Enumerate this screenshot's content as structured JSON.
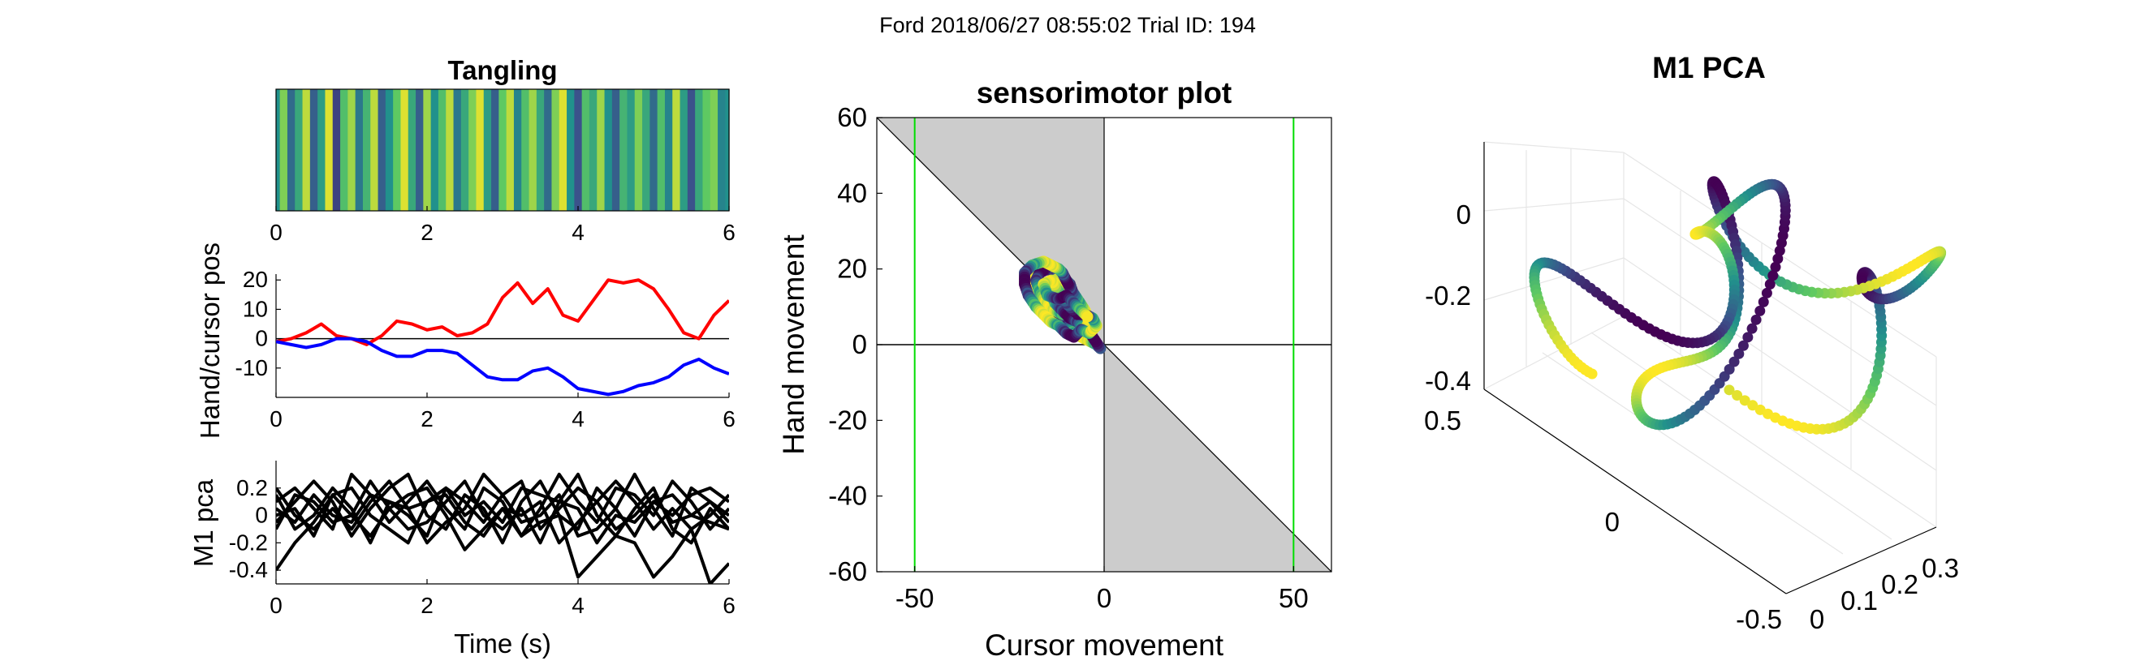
{
  "figure": {
    "suptitle": "Ford 2018/06/27 08:55:02 Trial ID: 194"
  },
  "colors": {
    "red": "#ff0000",
    "blue": "#0000ff",
    "green": "#00dd00",
    "black": "#000000",
    "shade": "#cccccc",
    "viridis": [
      "#440154",
      "#3b528b",
      "#21918c",
      "#5ec962",
      "#fde725"
    ]
  },
  "chart_data": [
    {
      "id": "tangling",
      "type": "heatmap",
      "title": "Tangling",
      "xlim": [
        0,
        6
      ],
      "xticks": [
        "0",
        "2",
        "4",
        "6"
      ],
      "colormap": "viridis",
      "x": [
        0,
        0.1,
        0.2,
        0.3,
        0.4,
        0.5,
        0.6,
        0.7,
        0.8,
        0.9,
        1.0,
        1.1,
        1.2,
        1.3,
        1.4,
        1.5,
        1.6,
        1.7,
        1.8,
        1.9,
        2.0,
        2.1,
        2.2,
        2.3,
        2.4,
        2.5,
        2.6,
        2.7,
        2.8,
        2.9,
        3.0,
        3.1,
        3.2,
        3.3,
        3.4,
        3.5,
        3.6,
        3.7,
        3.8,
        3.9,
        4.0,
        4.1,
        4.2,
        4.3,
        4.4,
        4.5,
        4.6,
        4.7,
        4.8,
        4.9,
        5.0,
        5.1,
        5.2,
        5.3,
        5.4,
        5.5,
        5.6,
        5.7,
        5.8,
        5.9,
        6.0
      ],
      "values": [
        0.5,
        0.8,
        0.35,
        0.6,
        0.9,
        0.3,
        0.55,
        0.95,
        0.2,
        0.7,
        0.85,
        0.4,
        0.65,
        0.9,
        0.3,
        0.5,
        0.75,
        0.95,
        0.6,
        0.3,
        0.85,
        0.5,
        0.7,
        0.9,
        0.4,
        0.6,
        0.8,
        0.95,
        0.55,
        0.3,
        0.75,
        0.9,
        0.45,
        0.7,
        0.85,
        0.6,
        0.35,
        0.8,
        0.95,
        0.5,
        0.25,
        0.7,
        0.6,
        0.85,
        0.5,
        0.3,
        0.65,
        0.55,
        0.8,
        0.6,
        0.35,
        0.7,
        0.45,
        0.9,
        0.55,
        0.25,
        0.6,
        0.75,
        0.8,
        0.45,
        0.5
      ]
    },
    {
      "id": "handcursor",
      "type": "line",
      "ylabel": "Hand/cursor pos",
      "xlim": [
        0,
        6
      ],
      "ylim": [
        -20,
        22
      ],
      "xticks": [
        "0",
        "2",
        "4",
        "6"
      ],
      "yticks": [
        "20",
        "10",
        "0",
        "-10"
      ],
      "x": [
        0,
        0.2,
        0.4,
        0.6,
        0.8,
        1.0,
        1.2,
        1.4,
        1.6,
        1.8,
        2.0,
        2.2,
        2.4,
        2.6,
        2.8,
        3.0,
        3.2,
        3.4,
        3.6,
        3.8,
        4.0,
        4.2,
        4.4,
        4.6,
        4.8,
        5.0,
        5.2,
        5.4,
        5.6,
        5.8,
        6.0
      ],
      "series": [
        {
          "color": "red",
          "values": [
            -1,
            0,
            2,
            5,
            1,
            0,
            -2,
            1,
            6,
            5,
            3,
            4,
            1,
            2,
            5,
            14,
            19,
            12,
            17,
            8,
            6,
            13,
            20,
            19,
            20,
            17,
            10,
            2,
            0,
            8,
            13
          ]
        },
        {
          "color": "blue",
          "values": [
            -1,
            -2,
            -3,
            -2,
            0,
            0,
            -1,
            -4,
            -6,
            -6,
            -4,
            -4,
            -5,
            -9,
            -13,
            -14,
            -14,
            -11,
            -10,
            -13,
            -17,
            -18,
            -19,
            -18,
            -16,
            -15,
            -13,
            -9,
            -7,
            -10,
            -12
          ]
        }
      ]
    },
    {
      "id": "m1pca_time",
      "type": "line",
      "ylabel": "M1 pca",
      "xlabel": "Time (s)",
      "xlim": [
        0,
        6
      ],
      "ylim": [
        -0.5,
        0.4
      ],
      "xticks": [
        "0",
        "2",
        "4",
        "6"
      ],
      "yticks": [
        "0.2",
        "0",
        "-0.2",
        "-0.4"
      ],
      "x": [
        0,
        0.25,
        0.5,
        0.75,
        1.0,
        1.25,
        1.5,
        1.75,
        2.0,
        2.25,
        2.5,
        2.75,
        3.0,
        3.25,
        3.5,
        3.75,
        4.0,
        4.25,
        4.5,
        4.75,
        5.0,
        5.25,
        5.5,
        5.75,
        6.0
      ],
      "series": [
        {
          "values": [
            0.1,
            0.2,
            0.05,
            -0.1,
            0.3,
            0.15,
            -0.05,
            0.1,
            0.25,
            0.05,
            -0.1,
            0.2,
            0.1,
            -0.15,
            0.05,
            0.3,
            0.1,
            -0.05,
            0.2,
            0.15,
            0.0,
            0.25,
            0.1,
            -0.1,
            0.05
          ]
        },
        {
          "values": [
            -0.05,
            0.1,
            0.25,
            0.1,
            -0.15,
            0.05,
            0.2,
            0.3,
            0.0,
            -0.1,
            0.15,
            0.05,
            -0.2,
            0.1,
            0.25,
            0.0,
            -0.1,
            0.2,
            0.05,
            -0.15,
            0.1,
            0.0,
            0.15,
            0.2,
            0.1
          ]
        },
        {
          "values": [
            0.15,
            -0.1,
            0.0,
            0.2,
            0.05,
            -0.2,
            0.1,
            0.0,
            -0.15,
            0.2,
            0.1,
            -0.05,
            0.15,
            0.25,
            -0.1,
            0.05,
            0.2,
            0.1,
            -0.1,
            0.0,
            0.15,
            -0.05,
            0.0,
            0.1,
            -0.05
          ]
        },
        {
          "values": [
            0.0,
            0.05,
            -0.15,
            0.15,
            0.2,
            0.0,
            -0.1,
            -0.2,
            0.1,
            0.15,
            -0.05,
            -0.15,
            0.05,
            0.0,
            0.1,
            -0.2,
            -0.05,
            0.1,
            0.25,
            0.1,
            -0.1,
            0.05,
            -0.1,
            0.0,
            0.15
          ]
        },
        {
          "values": [
            -0.1,
            0.15,
            0.1,
            -0.05,
            0.0,
            0.25,
            0.05,
            -0.1,
            -0.05,
            0.1,
            0.25,
            0.0,
            -0.1,
            0.05,
            -0.2,
            0.1,
            0.3,
            0.0,
            -0.15,
            0.05,
            0.2,
            -0.1,
            -0.2,
            0.05,
            -0.1
          ]
        },
        {
          "values": [
            0.2,
            0.0,
            -0.1,
            0.05,
            -0.1,
            0.1,
            0.25,
            0.05,
            -0.2,
            -0.05,
            0.05,
            0.3,
            0.15,
            -0.05,
            0.0,
            0.15,
            -0.15,
            -0.1,
            0.05,
            0.3,
            0.05,
            -0.15,
            0.2,
            0.1,
            0.0
          ]
        },
        {
          "values": [
            -0.4,
            -0.2,
            -0.05,
            0.15,
            0.0,
            -0.15,
            0.05,
            0.15,
            0.2,
            0.0,
            -0.25,
            -0.1,
            0.05,
            -0.15,
            -0.05,
            0.0,
            -0.45,
            -0.3,
            -0.15,
            -0.2,
            -0.45,
            -0.3,
            -0.1,
            -0.5,
            -0.35
          ]
        },
        {
          "values": [
            0.05,
            -0.05,
            0.15,
            0.0,
            -0.05,
            0.15,
            0.1,
            0.05,
            0.1,
            0.2,
            0.0,
            0.1,
            -0.05,
            0.2,
            0.15,
            0.1,
            0.05,
            -0.2,
            0.0,
            -0.05,
            0.1,
            0.15,
            0.0,
            -0.05,
            -0.1
          ]
        }
      ]
    },
    {
      "id": "sensorimotor",
      "type": "scatter",
      "title": "sensorimotor plot",
      "xlabel": "Cursor movement",
      "ylabel": "Hand movement",
      "xlim": [
        -60,
        60
      ],
      "ylim": [
        -60,
        60
      ],
      "xticks": [
        "-50",
        "0",
        "50"
      ],
      "yticks": [
        "60",
        "40",
        "20",
        "0",
        "-20",
        "-40",
        "-60"
      ],
      "vlines": [
        -50,
        50
      ],
      "diagonal": "y = -x",
      "points": [
        [
          -20,
          20
        ],
        [
          -19,
          18
        ],
        [
          -18,
          15
        ],
        [
          -16,
          12
        ],
        [
          -14,
          9
        ],
        [
          -12,
          7
        ],
        [
          -10,
          5
        ],
        [
          -8,
          3
        ],
        [
          -6,
          2
        ],
        [
          -4,
          1
        ],
        [
          -2,
          0
        ],
        [
          -1,
          -1
        ],
        [
          -3,
          2
        ],
        [
          -5,
          5
        ],
        [
          -7,
          9
        ],
        [
          -9,
          13
        ],
        [
          -11,
          17
        ],
        [
          -13,
          19
        ],
        [
          -15,
          20
        ],
        [
          -17,
          19
        ],
        [
          -18,
          17
        ],
        [
          -17,
          14
        ],
        [
          -15,
          11
        ],
        [
          -13,
          9
        ],
        [
          -11,
          8
        ],
        [
          -9,
          10
        ],
        [
          -8,
          13
        ],
        [
          -9,
          16
        ],
        [
          -11,
          18
        ],
        [
          -13,
          17
        ],
        [
          -14,
          14
        ],
        [
          -13,
          11
        ],
        [
          -11,
          9
        ],
        [
          -9,
          7
        ],
        [
          -7,
          6
        ],
        [
          -5,
          4
        ],
        [
          -4,
          6
        ],
        [
          -5,
          9
        ],
        [
          -7,
          12
        ],
        [
          -9,
          15
        ],
        [
          -10,
          17
        ],
        [
          -11,
          19
        ],
        [
          -12,
          20
        ],
        [
          -14,
          21
        ],
        [
          -16,
          22
        ],
        [
          -19,
          21
        ],
        [
          -21,
          19
        ],
        [
          -21,
          16
        ],
        [
          -20,
          13
        ],
        [
          -18,
          10
        ],
        [
          -16,
          8
        ],
        [
          -14,
          6
        ],
        [
          -12,
          5
        ],
        [
          -10,
          3
        ],
        [
          -8,
          2
        ],
        [
          -6,
          4
        ],
        [
          -4,
          3
        ],
        [
          -3,
          4
        ],
        [
          -2,
          5
        ],
        [
          -3,
          7
        ],
        [
          -5,
          8
        ],
        [
          -7,
          8
        ],
        [
          -10,
          11
        ],
        [
          -12,
          14
        ],
        [
          -14,
          17
        ],
        [
          -16,
          16
        ],
        [
          -15,
          13
        ],
        [
          -12,
          12
        ],
        [
          -10,
          13
        ],
        [
          -8,
          11
        ],
        [
          -6,
          9
        ],
        [
          -4,
          7
        ]
      ]
    },
    {
      "id": "m1pca3d",
      "type": "scatter",
      "title": "M1 PCA",
      "zticks": [
        "0",
        "-0.2",
        "-0.4"
      ],
      "xticks": [
        "0",
        "0.1",
        "0.2",
        "0.3"
      ],
      "yticks": [
        "0.5",
        "0",
        "-0.5"
      ]
    }
  ]
}
